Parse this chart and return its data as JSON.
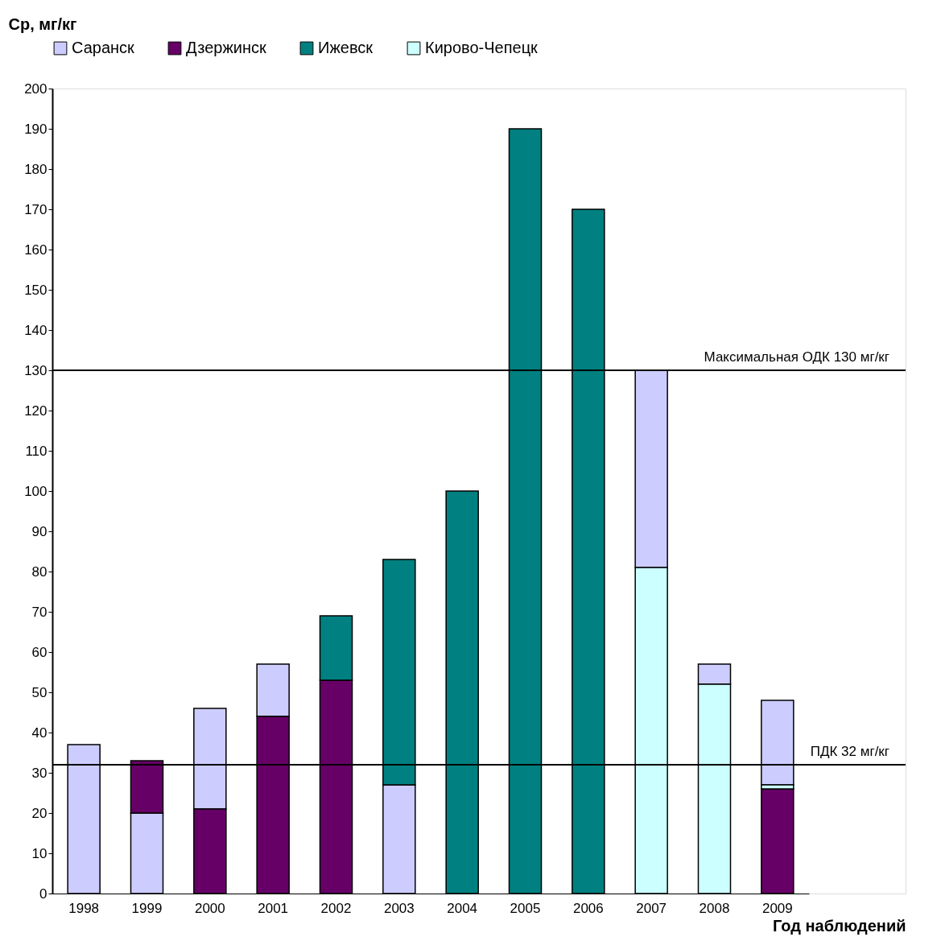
{
  "chart_data": {
    "type": "bar",
    "ylabel": "Ср, мг/кг",
    "xlabel": "Год наблюдений",
    "legend": "top",
    "categories": [
      "1998",
      "1999",
      "2000",
      "2001",
      "2002",
      "2003",
      "2004",
      "2005",
      "2006",
      "2007",
      "2008",
      "2009"
    ],
    "series": [
      {
        "name": "Саранск",
        "color": "#ccccff",
        "values": [
          37,
          20,
          25,
          13,
          null,
          27,
          null,
          null,
          null,
          49,
          5,
          21
        ],
        "base": [
          0,
          0,
          21,
          44,
          null,
          0,
          null,
          null,
          null,
          81,
          52,
          27
        ]
      },
      {
        "name": "Дзержинск",
        "color": "#660066",
        "values": [
          null,
          13,
          21,
          44,
          53,
          null,
          null,
          null,
          null,
          null,
          null,
          26
        ],
        "base": [
          null,
          20,
          0,
          0,
          0,
          null,
          null,
          null,
          null,
          null,
          null,
          0
        ]
      },
      {
        "name": "Ижевск",
        "color": "#008080",
        "values": [
          null,
          null,
          null,
          null,
          16,
          56,
          100,
          190,
          170,
          null,
          null,
          null
        ],
        "base": [
          null,
          null,
          null,
          null,
          53,
          27,
          0,
          0,
          0,
          null,
          null,
          null
        ]
      },
      {
        "name": "Кирово-Чепецк",
        "color": "#ccffff",
        "values": [
          null,
          null,
          null,
          null,
          null,
          null,
          null,
          null,
          null,
          81,
          52,
          1
        ],
        "base": [
          null,
          null,
          null,
          null,
          null,
          null,
          null,
          null,
          null,
          0,
          0,
          26
        ]
      }
    ],
    "ylim": [
      0,
      200
    ],
    "yticks": [
      0,
      10,
      20,
      30,
      40,
      50,
      60,
      70,
      80,
      90,
      100,
      110,
      120,
      130,
      140,
      150,
      160,
      170,
      180,
      190,
      200
    ],
    "grid": false,
    "ref_lines": [
      {
        "axis": "y",
        "value": 130,
        "label": "Максимальная ОДК 130 мг/кг",
        "color": "#000000"
      },
      {
        "axis": "y",
        "value": 32,
        "label": "ПДК 32 мг/кг",
        "color": "#000000"
      }
    ]
  }
}
